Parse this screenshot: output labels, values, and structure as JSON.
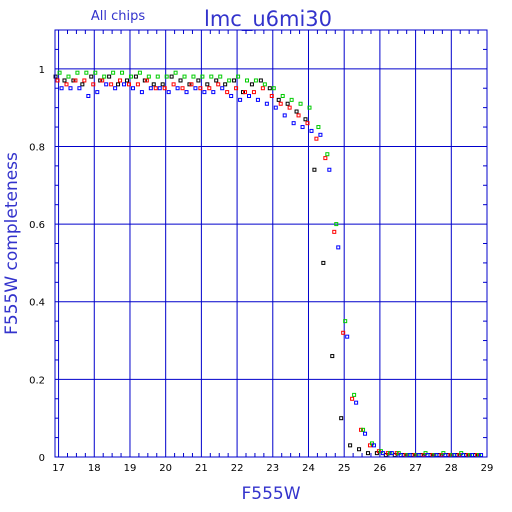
{
  "header": {
    "left_title": "All chips",
    "main_title": "lmc_u6mi30"
  },
  "colors": {
    "axis": "#0000cc",
    "grid": "#0000cc",
    "label": "#3333cc",
    "series": [
      "#000000",
      "#ff0000",
      "#00cc00",
      "#0000ff"
    ]
  },
  "chart_data": {
    "type": "scatter",
    "xlabel": "F555W",
    "ylabel": "F555W completeness",
    "xlim": [
      16.9,
      29.0
    ],
    "ylim": [
      0,
      1.1
    ],
    "x_ticks": [
      17,
      18,
      19,
      20,
      21,
      22,
      23,
      24,
      25,
      26,
      27,
      28,
      29
    ],
    "y_ticks": [
      0,
      0.2,
      0.4,
      0.6,
      0.8,
      1
    ],
    "y_tick_labels": [
      "0",
      "0.2",
      "0.4",
      "0.6",
      "0.8",
      "1"
    ],
    "grid": true,
    "marker": "open-square",
    "x": [
      17.0,
      17.25,
      17.5,
      17.75,
      18.0,
      18.25,
      18.5,
      18.75,
      19.0,
      19.25,
      19.5,
      19.75,
      20.0,
      20.25,
      20.5,
      20.75,
      21.0,
      21.25,
      21.5,
      21.75,
      22.0,
      22.25,
      22.5,
      22.75,
      23.0,
      23.25,
      23.5,
      23.75,
      24.0,
      24.25,
      24.5,
      24.75,
      25.0,
      25.25,
      25.5,
      25.75,
      26.0,
      26.25,
      26.5,
      26.75,
      27.0,
      27.25,
      27.5,
      27.75,
      28.0,
      28.25,
      28.5,
      28.75
    ],
    "series": [
      {
        "values": [
          0.98,
          0.97,
          0.97,
          0.96,
          0.98,
          0.97,
          0.98,
          0.96,
          0.97,
          0.98,
          0.97,
          0.96,
          0.96,
          0.98,
          0.97,
          0.96,
          0.97,
          0.96,
          0.97,
          0.96,
          0.97,
          0.94,
          0.96,
          0.97,
          0.95,
          0.92,
          0.91,
          0.89,
          0.87,
          0.74,
          0.5,
          0.26,
          0.1,
          0.03,
          0.02,
          0.01,
          0.01,
          0.005,
          0.005,
          0.005,
          0.005,
          0.005,
          0.005,
          0.005,
          0.005,
          0.005,
          0.005,
          0.005
        ]
      },
      {
        "values": [
          0.97,
          0.96,
          0.97,
          0.97,
          0.96,
          0.97,
          0.96,
          0.97,
          0.96,
          0.96,
          0.97,
          0.95,
          0.95,
          0.96,
          0.95,
          0.96,
          0.95,
          0.95,
          0.96,
          0.94,
          0.95,
          0.94,
          0.94,
          0.95,
          0.93,
          0.91,
          0.9,
          0.88,
          0.86,
          0.82,
          0.77,
          0.58,
          0.32,
          0.15,
          0.07,
          0.03,
          0.015,
          0.01,
          0.01,
          0.005,
          0.005,
          0.005,
          0.005,
          0.005,
          0.005,
          0.005,
          0.005,
          0.005
        ]
      },
      {
        "values": [
          0.99,
          0.98,
          0.99,
          0.99,
          0.99,
          0.98,
          0.99,
          0.99,
          0.98,
          0.99,
          0.98,
          0.98,
          0.98,
          0.99,
          0.98,
          0.98,
          0.98,
          0.98,
          0.98,
          0.97,
          0.98,
          0.97,
          0.97,
          0.96,
          0.95,
          0.93,
          0.92,
          0.91,
          0.9,
          0.85,
          0.78,
          0.6,
          0.35,
          0.16,
          0.07,
          0.035,
          0.015,
          0.01,
          0.01,
          0.005,
          0.005,
          0.01,
          0.005,
          0.01,
          0.005,
          0.01,
          0.005,
          0.005
        ]
      },
      {
        "values": [
          0.95,
          0.95,
          0.95,
          0.93,
          0.94,
          0.96,
          0.95,
          0.96,
          0.95,
          0.94,
          0.95,
          0.95,
          0.94,
          0.95,
          0.94,
          0.95,
          0.94,
          0.94,
          0.95,
          0.93,
          0.92,
          0.93,
          0.92,
          0.91,
          0.9,
          0.88,
          0.86,
          0.85,
          0.84,
          0.83,
          0.74,
          0.54,
          0.31,
          0.14,
          0.06,
          0.03,
          0.01,
          0.01,
          0.005,
          0.005,
          0.005,
          0.005,
          0.005,
          0.005,
          0.005,
          0.005,
          0.005,
          0.005
        ]
      }
    ]
  }
}
